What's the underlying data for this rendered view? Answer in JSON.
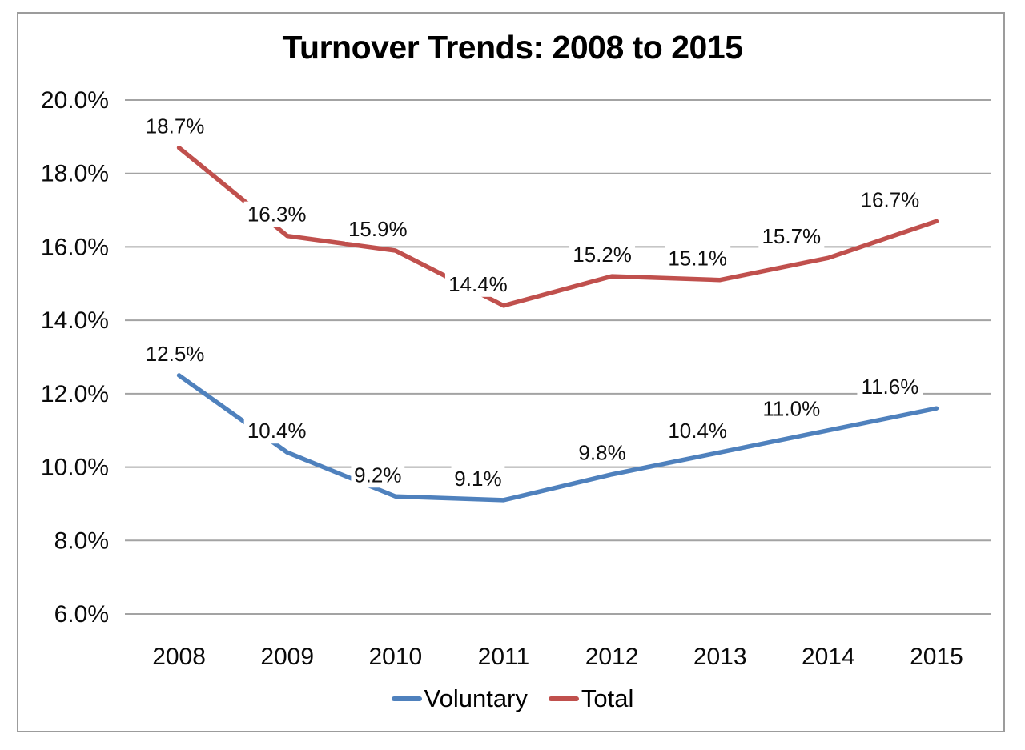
{
  "chart_data": {
    "type": "line",
    "title": "Turnover Trends: 2008 to 2015",
    "categories": [
      "2008",
      "2009",
      "2010",
      "2011",
      "2012",
      "2013",
      "2014",
      "2015"
    ],
    "series": [
      {
        "name": "Voluntary",
        "color": "#4F81BD",
        "values": [
          12.5,
          10.4,
          9.2,
          9.1,
          9.8,
          10.4,
          11.0,
          11.6
        ],
        "labels": [
          "12.5%",
          "10.4%",
          "9.2%",
          "9.1%",
          "9.8%",
          "10.4%",
          "11.0%",
          "11.6%"
        ]
      },
      {
        "name": "Total",
        "color": "#C0504D",
        "values": [
          18.7,
          16.3,
          15.9,
          14.4,
          15.2,
          15.1,
          15.7,
          16.7
        ],
        "labels": [
          "18.7%",
          "16.3%",
          "15.9%",
          "14.4%",
          "15.2%",
          "15.1%",
          "15.7%",
          "16.7%"
        ]
      }
    ],
    "y_axis": {
      "min": 6,
      "max": 20,
      "step": 2,
      "tick_labels": [
        "20.0%",
        "18.0%",
        "16.0%",
        "14.0%",
        "12.0%",
        "10.0%",
        "8.0%",
        "6.0%"
      ]
    },
    "x_axis": {
      "label": ""
    },
    "grid": true,
    "legend_position": "bottom",
    "colors": {
      "gridline": "#a3a3a3",
      "frame_border": "#9c9c9c",
      "background": "#ffffff",
      "text": "#0a0a0a",
      "label_background": "#ffffff"
    }
  }
}
